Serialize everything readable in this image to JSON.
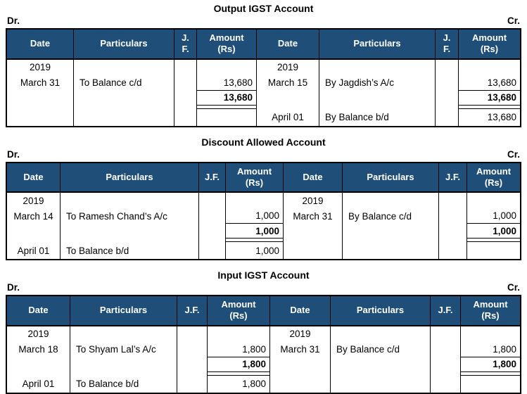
{
  "colors": {
    "header_bg": "#1F4E79",
    "header_text": "#ffffff",
    "border": "#000000"
  },
  "accounts": [
    {
      "title": "Output IGST Account",
      "dr": "Dr.",
      "cr": "Cr.",
      "headers": {
        "date": "Date",
        "particulars": "Particulars",
        "jf": "J.\nF.",
        "amount": "Amount\n(Rs)"
      },
      "left": {
        "year": "2019",
        "entry": {
          "date": "March 31",
          "particulars": "To Balance c/d",
          "amount": "13,680"
        },
        "total": "13,680",
        "closing": {
          "date": "",
          "particulars": "",
          "amount": ""
        }
      },
      "right": {
        "year": "2019",
        "entry": {
          "date": "March 15",
          "particulars": "By Jagdish’s A/c",
          "amount": "13,680"
        },
        "total": "13,680",
        "closing": {
          "date": "April 01",
          "particulars": "By Balance b/d",
          "amount": "13,680"
        }
      }
    },
    {
      "title": "Discount Allowed Account",
      "dr": "Dr.",
      "cr": "Cr.",
      "headers": {
        "date": "Date",
        "particulars": "Particulars",
        "jf": "J.F.",
        "amount": "Amount\n(Rs)"
      },
      "left": {
        "year": "2019",
        "entry": {
          "date": "March 14",
          "particulars": "To Ramesh Chand’s A/c",
          "amount": "1,000"
        },
        "total": "1,000",
        "closing": {
          "date": "April 01",
          "particulars": "To Balance b/d",
          "amount": "1,000"
        }
      },
      "right": {
        "year": "2019",
        "entry": {
          "date": "March 31",
          "particulars": "By Balance c/d",
          "amount": "1,000"
        },
        "total": "1,000",
        "closing": {
          "date": "",
          "particulars": "",
          "amount": ""
        }
      }
    },
    {
      "title": "Input IGST Account",
      "dr": "Dr.",
      "cr": "Cr.",
      "headers": {
        "date": "Date",
        "particulars": "Particulars",
        "jf": "J.F.",
        "amount": "Amount\n(Rs)"
      },
      "left": {
        "year": "2019",
        "entry": {
          "date": "March 18",
          "particulars": "To Shyam Lal’s A/c",
          "amount": "1,800"
        },
        "total": "1,800",
        "closing": {
          "date": "April 01",
          "particulars": "To Balance b/d",
          "amount": "1,800"
        }
      },
      "right": {
        "year": "2019",
        "entry": {
          "date": "March 31",
          "particulars": "By Balance c/d",
          "amount": "1,800"
        },
        "total": "1,800",
        "closing": {
          "date": "",
          "particulars": "",
          "amount": ""
        }
      }
    }
  ]
}
